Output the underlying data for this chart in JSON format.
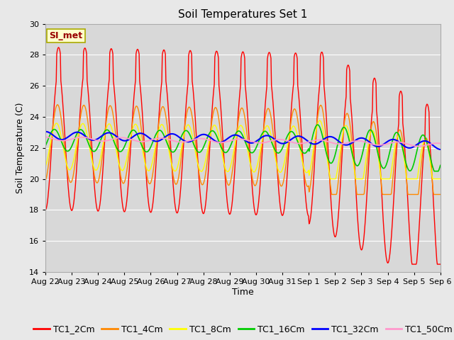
{
  "title": "Soil Temperatures Set 1",
  "xlabel": "Time",
  "ylabel": "Soil Temperature (C)",
  "ylim": [
    14,
    30
  ],
  "yticks": [
    14,
    16,
    18,
    20,
    22,
    24,
    26,
    28,
    30
  ],
  "x_labels": [
    "Aug 22",
    "Aug 23",
    "Aug 24",
    "Aug 25",
    "Aug 26",
    "Aug 27",
    "Aug 28",
    "Aug 29",
    "Aug 30",
    "Aug 31",
    "Sep 1",
    "Sep 2",
    "Sep 3",
    "Sep 4",
    "Sep 5",
    "Sep 6"
  ],
  "annotation_text": "SI_met",
  "annotation_bg": "#ffffcc",
  "annotation_border": "#aaaa00",
  "annotation_text_color": "#990000",
  "colors": {
    "TC1_2Cm": "#ff0000",
    "TC1_4Cm": "#ff8800",
    "TC1_8Cm": "#ffff00",
    "TC1_16Cm": "#00cc00",
    "TC1_32Cm": "#0000ff",
    "TC1_50Cm": "#ff99cc"
  },
  "plot_bg_color": "#d8d8d8",
  "fig_bg_color": "#e8e8e8",
  "grid_color": "#ffffff",
  "title_fontsize": 11,
  "axis_fontsize": 9,
  "tick_fontsize": 8,
  "legend_fontsize": 9
}
